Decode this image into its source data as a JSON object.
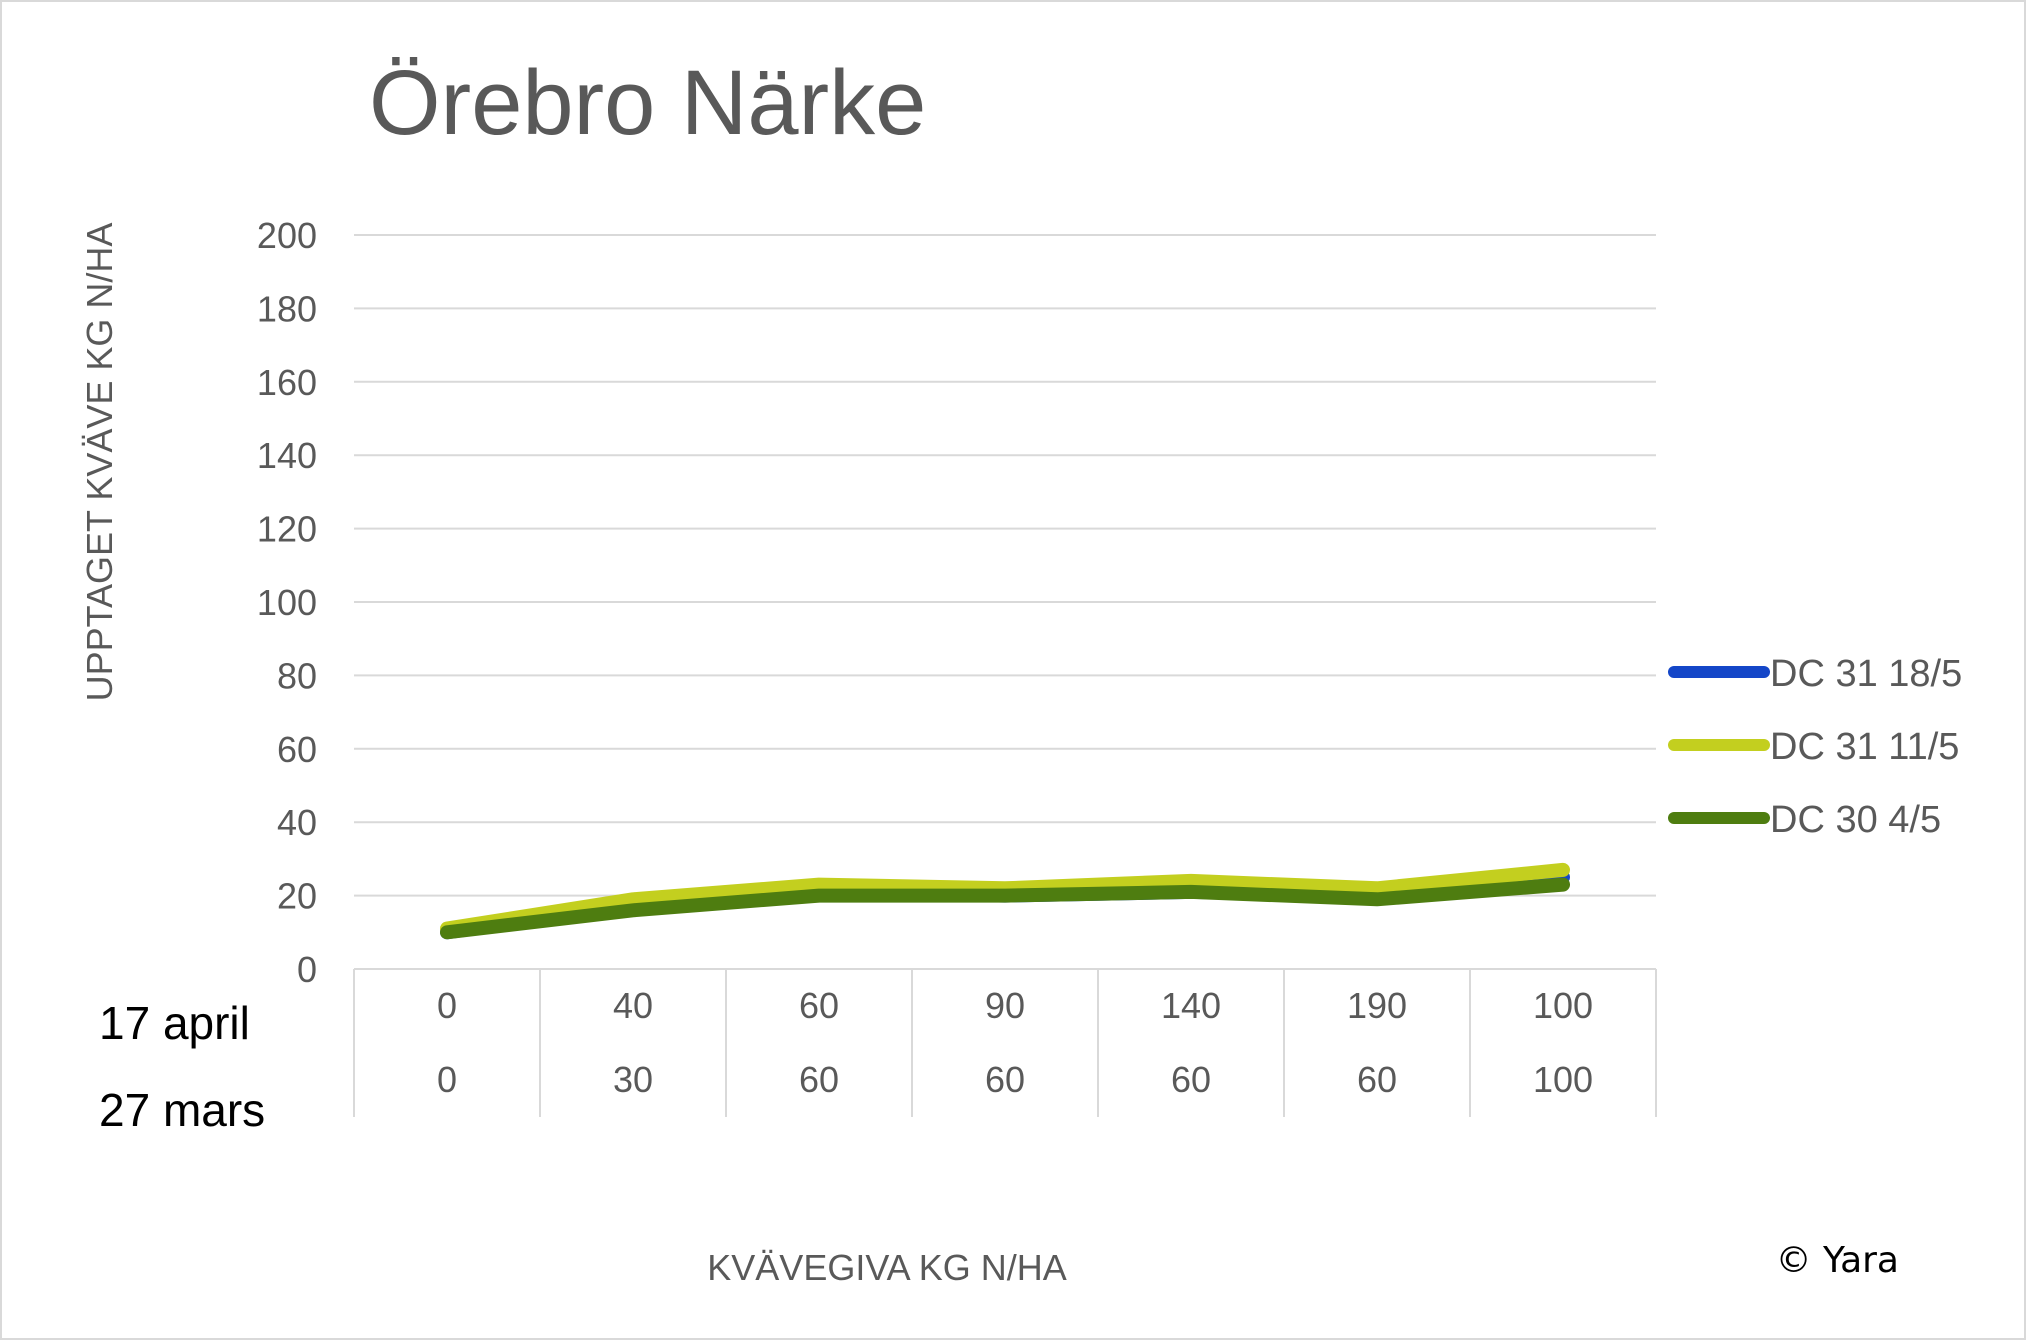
{
  "chart_data": {
    "type": "line",
    "title": "Örebro Närke",
    "ylabel": "UPPTAGET KVÄVE KG N/HA",
    "xlabel": "KVÄVEGIVA  KG N/HA",
    "ylim": [
      0,
      200
    ],
    "yticks": [
      "0",
      "20",
      "40",
      "60",
      "80",
      "100",
      "120",
      "140",
      "160",
      "180",
      "200"
    ],
    "category_rows": [
      {
        "label": "17 april",
        "values": [
          "0",
          "40",
          "60",
          "90",
          "140",
          "190",
          "100"
        ]
      },
      {
        "label": "27 mars",
        "values": [
          "0",
          "30",
          "60",
          "60",
          "60",
          "60",
          "100"
        ]
      }
    ],
    "grid": true,
    "legend_position": "right",
    "series": [
      {
        "name": "DC 31 18/5",
        "color": "#1446c8",
        "values": [
          10,
          17,
          21,
          20,
          21,
          20,
          25
        ]
      },
      {
        "name": "DC 31 11/5",
        "color": "#c3cf1f",
        "values": [
          11,
          19,
          23,
          22,
          24,
          22,
          27
        ]
      },
      {
        "name": "DC 30 4/5",
        "color": "#4e7d10",
        "values": [
          10,
          16,
          20,
          20,
          21,
          19,
          23
        ]
      }
    ]
  },
  "footer": {
    "copyright": "© Yara"
  }
}
